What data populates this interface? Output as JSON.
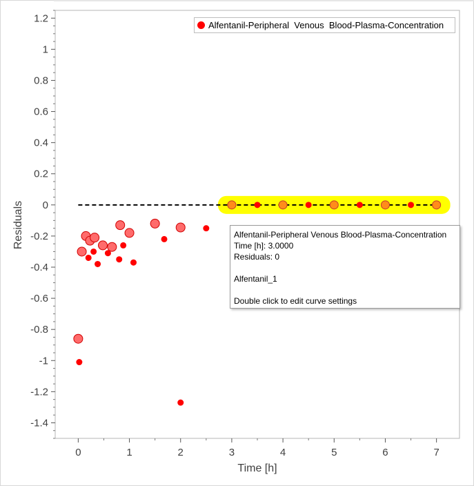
{
  "chart_data": {
    "type": "scatter",
    "xlabel": "Time [h]",
    "ylabel": "Residuals",
    "xlim": [
      -0.45,
      7.45
    ],
    "ylim": [
      -1.5,
      1.25
    ],
    "xticks": [
      "0",
      "1",
      "2",
      "3",
      "4",
      "5",
      "6",
      "7"
    ],
    "yticks": [
      "1.2",
      "1",
      "0.8",
      "0.6",
      "0.4",
      "0.2",
      "0",
      "-0.2",
      "-0.4",
      "-0.6",
      "-0.8",
      "-1",
      "-1.2",
      "-1.4"
    ],
    "legend": {
      "position": "top-right",
      "entries": [
        "Alfentanil-Peripheral  Venous  Blood-Plasma-Concentration"
      ]
    },
    "series": [
      {
        "name": "Alfentanil-Peripheral  Venous  Blood-Plasma-Concentration",
        "color": "#ff0000",
        "small_points": [
          {
            "x": 0.02,
            "y": -1.01
          },
          {
            "x": 0.2,
            "y": -0.34
          },
          {
            "x": 0.3,
            "y": -0.3
          },
          {
            "x": 0.38,
            "y": -0.38
          },
          {
            "x": 0.58,
            "y": -0.31
          },
          {
            "x": 0.8,
            "y": -0.35
          },
          {
            "x": 0.88,
            "y": -0.26
          },
          {
            "x": 1.08,
            "y": -0.37
          },
          {
            "x": 1.68,
            "y": -0.22
          },
          {
            "x": 2.0,
            "y": -1.27
          },
          {
            "x": 2.5,
            "y": -0.15
          },
          {
            "x": 3.5,
            "y": 0
          },
          {
            "x": 4.5,
            "y": 0
          },
          {
            "x": 5.5,
            "y": 0
          },
          {
            "x": 6.5,
            "y": 0
          }
        ],
        "large_points": [
          {
            "x": 0.0,
            "y": -0.86
          },
          {
            "x": 0.07,
            "y": -0.3
          },
          {
            "x": 0.15,
            "y": -0.2
          },
          {
            "x": 0.23,
            "y": -0.23
          },
          {
            "x": 0.32,
            "y": -0.21
          },
          {
            "x": 0.48,
            "y": -0.26
          },
          {
            "x": 0.66,
            "y": -0.27
          },
          {
            "x": 0.82,
            "y": -0.13
          },
          {
            "x": 1.0,
            "y": -0.18
          },
          {
            "x": 1.5,
            "y": -0.12
          },
          {
            "x": 2.0,
            "y": -0.145
          }
        ],
        "highlighted_points": [
          {
            "x": 3,
            "y": 0
          },
          {
            "x": 4,
            "y": 0
          },
          {
            "x": 5,
            "y": 0
          },
          {
            "x": 6,
            "y": 0
          },
          {
            "x": 7,
            "y": 0
          }
        ]
      }
    ],
    "reference_line": {
      "y": 0,
      "x_from": 0,
      "x_to": 7,
      "style": "dashed",
      "color": "#000000"
    },
    "highlight_color": "#ffff00",
    "highlight_marker_color": "#ff8c1a"
  },
  "tooltip": {
    "line1": "Alfentanil-Peripheral Venous Blood-Plasma-Concentration",
    "line2": "Time [h]: 3.0000",
    "line3": "Residuals: 0",
    "line4": "Alfentanil_1",
    "line5": "Double click to edit curve settings"
  }
}
